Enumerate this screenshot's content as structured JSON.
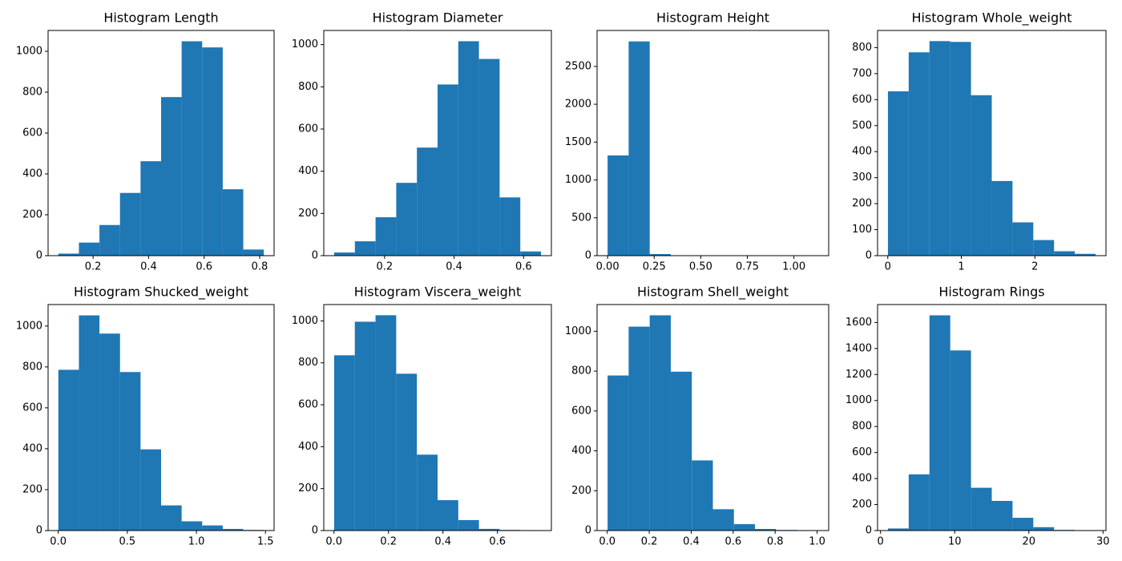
{
  "chart_data": [
    {
      "type": "histogram",
      "title": "Histogram Length",
      "color": "#1f77b4",
      "bins": [
        0.075,
        0.149,
        0.223,
        0.297,
        0.371,
        0.445,
        0.519,
        0.593,
        0.667,
        0.741,
        0.815
      ],
      "values": [
        10,
        64,
        150,
        307,
        462,
        776,
        1049,
        1019,
        325,
        30
      ],
      "xlim": [
        0.038,
        0.852
      ],
      "ylim": [
        0,
        1102
      ],
      "xticks": [
        0.2,
        0.4,
        0.6,
        0.8
      ],
      "yticks": [
        0,
        200,
        400,
        600,
        800,
        1000
      ]
    },
    {
      "type": "histogram",
      "title": "Histogram Diameter",
      "color": "#1f77b4",
      "bins": [
        0.055,
        0.1145,
        0.174,
        0.2335,
        0.293,
        0.3525,
        0.412,
        0.4715,
        0.531,
        0.5905,
        0.65
      ],
      "values": [
        15,
        68,
        182,
        345,
        512,
        811,
        1016,
        932,
        276,
        20
      ],
      "xlim": [
        0.025,
        0.68
      ],
      "ylim": [
        0,
        1067
      ],
      "xticks": [
        0.2,
        0.4,
        0.6
      ],
      "yticks": [
        0,
        200,
        400,
        600,
        800,
        1000
      ]
    },
    {
      "type": "histogram",
      "title": "Histogram Height",
      "color": "#1f77b4",
      "bins": [
        0,
        0.113,
        0.226,
        0.339,
        0.452,
        0.565,
        0.678,
        0.791,
        0.904,
        1.017,
        1.13
      ],
      "values": [
        1324,
        2830,
        21,
        0,
        1,
        0,
        0,
        0,
        0,
        1
      ],
      "xlim": [
        -0.0565,
        1.1865
      ],
      "ylim": [
        0,
        2975
      ],
      "xticks": [
        {
          "value": 0,
          "label": "0.00"
        },
        {
          "value": 0.25,
          "label": "0.25"
        },
        {
          "value": 0.5,
          "label": "0.50"
        },
        {
          "value": 0.75,
          "label": "0.75"
        },
        {
          "value": 1,
          "label": "1.00"
        }
      ],
      "yticks": [
        0,
        500,
        1000,
        1500,
        2000,
        2500
      ]
    },
    {
      "type": "histogram",
      "title": "Histogram Whole_weight",
      "color": "#1f77b4",
      "bins": [
        0.002,
        0.28435,
        0.5667,
        0.84905,
        1.1314,
        1.41375,
        1.6961,
        1.97845,
        2.2608,
        2.54315,
        2.8255
      ],
      "values": [
        632,
        782,
        825,
        822,
        617,
        287,
        128,
        60,
        17,
        7
      ],
      "xlim": [
        -0.139,
        2.967
      ],
      "ylim": [
        0,
        866
      ],
      "xticks": [
        0,
        1,
        2
      ],
      "yticks": [
        0,
        100,
        200,
        300,
        400,
        500,
        600,
        700,
        800
      ]
    },
    {
      "type": "histogram",
      "title": "Histogram Shucked_weight",
      "color": "#1f77b4",
      "bins": [
        0.001,
        0.1497,
        0.2984,
        0.4471,
        0.5958,
        0.7445,
        0.8932,
        1.0419,
        1.1906,
        1.3393,
        1.488
      ],
      "values": [
        786,
        1052,
        963,
        775,
        397,
        123,
        45,
        25,
        8,
        3
      ],
      "xlim": [
        -0.0734,
        1.5624
      ],
      "ylim": [
        0,
        1105
      ],
      "xticks": [
        {
          "value": 0,
          "label": "0.0"
        },
        0.5,
        {
          "value": 1,
          "label": "1.0"
        },
        1.5
      ],
      "yticks": [
        0,
        200,
        400,
        600,
        800,
        1000
      ]
    },
    {
      "type": "histogram",
      "title": "Histogram Viscera_weight",
      "color": "#1f77b4",
      "bins": [
        0.0005,
        0.07645,
        0.1524,
        0.22835,
        0.3043,
        0.38025,
        0.4562,
        0.53215,
        0.6081,
        0.68405,
        0.76
      ],
      "values": [
        836,
        996,
        1027,
        748,
        362,
        145,
        50,
        8,
        3,
        2
      ],
      "xlim": [
        -0.0375,
        0.798
      ],
      "ylim": [
        0,
        1078
      ],
      "xticks": [
        {
          "value": 0,
          "label": "0.0"
        },
        0.2,
        0.4,
        0.6
      ],
      "yticks": [
        0,
        200,
        400,
        600,
        800,
        1000
      ]
    },
    {
      "type": "histogram",
      "title": "Histogram Shell_weight",
      "color": "#1f77b4",
      "bins": [
        0.0015,
        0.10185,
        0.2022,
        0.30255,
        0.4029,
        0.50325,
        0.6036,
        0.70395,
        0.8043,
        0.90465,
        1.005
      ],
      "values": [
        778,
        1023,
        1080,
        797,
        352,
        107,
        32,
        8,
        3,
        1
      ],
      "xlim": [
        -0.0487,
        1.0552
      ],
      "ylim": [
        0,
        1134
      ],
      "xticks": [
        {
          "value": 0,
          "label": "0.0"
        },
        0.2,
        0.4,
        0.6,
        0.8,
        {
          "value": 1,
          "label": "1.0"
        }
      ],
      "yticks": [
        0,
        200,
        400,
        600,
        800,
        1000
      ]
    },
    {
      "type": "histogram",
      "title": "Histogram Rings",
      "color": "#1f77b4",
      "bins": [
        1,
        3.8,
        6.6,
        9.4,
        12.2,
        15,
        17.8,
        20.6,
        23.4,
        26.2,
        29
      ],
      "values": [
        16,
        432,
        1655,
        1385,
        329,
        228,
        98,
        26,
        5,
        3
      ],
      "xlim": [
        -0.4,
        30.4
      ],
      "ylim": [
        0,
        1738
      ],
      "xticks": [
        0,
        10,
        20,
        30
      ],
      "yticks": [
        0,
        200,
        400,
        600,
        800,
        1000,
        1200,
        1400,
        1600
      ]
    }
  ]
}
